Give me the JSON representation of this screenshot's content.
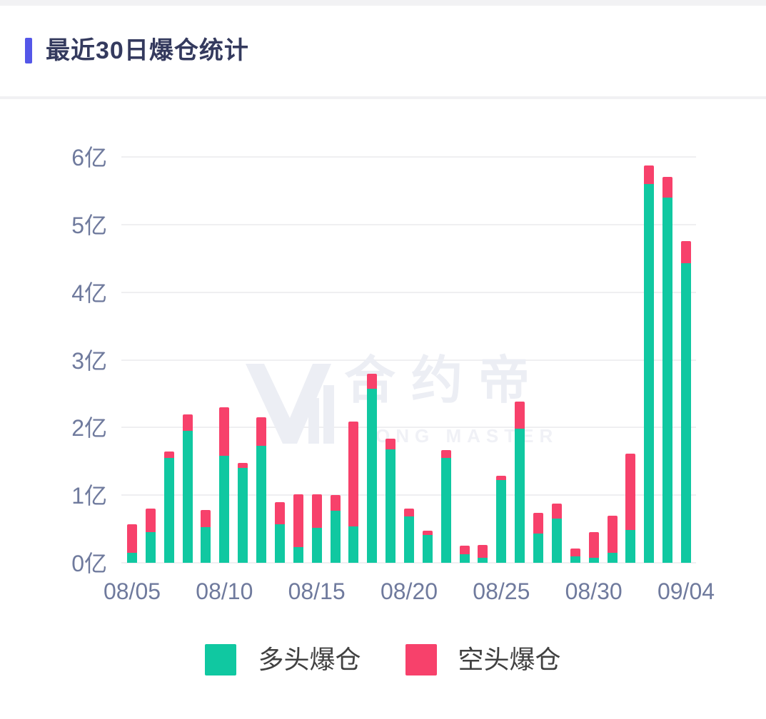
{
  "header": {
    "title": "最近30日爆仓统计"
  },
  "colors": {
    "accent": "#5457E8",
    "long": "#10C8A1",
    "short": "#F7416B",
    "grid": "#EFEFF1",
    "axis_label": "#6F7A9D",
    "title_text": "#343A5E",
    "legend_text": "#414141",
    "watermark": "#ECEEF4"
  },
  "watermark": {
    "logo_icon": "m-logo",
    "text": "合约帝",
    "subtext": "ONG MASTER"
  },
  "legend": {
    "items": [
      {
        "label": "多头爆仓",
        "color": "#10C8A1"
      },
      {
        "label": "空头爆仓",
        "color": "#F7416B"
      }
    ]
  },
  "chart_data": {
    "type": "bar",
    "stacked": true,
    "title": "最近30日爆仓统计",
    "unit": "亿",
    "grid": true,
    "legend_position": "bottom",
    "ylim": [
      0,
      6.2
    ],
    "y_ticks": [
      0,
      1,
      2,
      3,
      4,
      5,
      6
    ],
    "y_tick_labels": [
      "0亿",
      "1亿",
      "2亿",
      "3亿",
      "4亿",
      "5亿",
      "6亿"
    ],
    "x_tick_indices": [
      0,
      5,
      10,
      15,
      20,
      25,
      30
    ],
    "x_tick_labels": [
      "08/05",
      "08/10",
      "08/15",
      "08/20",
      "08/25",
      "08/30",
      "09/04"
    ],
    "categories": [
      "08/05",
      "08/06",
      "08/07",
      "08/08",
      "08/09",
      "08/10",
      "08/11",
      "08/12",
      "08/13",
      "08/14",
      "08/15",
      "08/16",
      "08/17",
      "08/18",
      "08/19",
      "08/20",
      "08/21",
      "08/22",
      "08/23",
      "08/24",
      "08/25",
      "08/26",
      "08/27",
      "08/28",
      "08/29",
      "08/30",
      "08/31",
      "09/01",
      "09/02",
      "09/03",
      "09/04"
    ],
    "series": [
      {
        "name": "多头爆仓",
        "color": "#10C8A1",
        "values": [
          0.15,
          0.45,
          1.55,
          1.95,
          0.53,
          1.58,
          1.4,
          1.73,
          0.57,
          0.23,
          0.52,
          0.77,
          0.54,
          2.57,
          1.68,
          0.69,
          0.41,
          1.55,
          0.13,
          0.07,
          1.22,
          1.98,
          0.43,
          0.65,
          0.1,
          0.07,
          0.15,
          0.48,
          5.6,
          5.4,
          4.43
        ]
      },
      {
        "name": "空头爆仓",
        "color": "#F7416B",
        "values": [
          0.42,
          0.35,
          0.1,
          0.24,
          0.25,
          0.72,
          0.08,
          0.42,
          0.33,
          0.78,
          0.49,
          0.23,
          1.55,
          0.22,
          0.15,
          0.11,
          0.06,
          0.12,
          0.12,
          0.19,
          0.07,
          0.4,
          0.31,
          0.22,
          0.11,
          0.38,
          0.55,
          1.13,
          0.27,
          0.3,
          0.33
        ]
      }
    ]
  }
}
